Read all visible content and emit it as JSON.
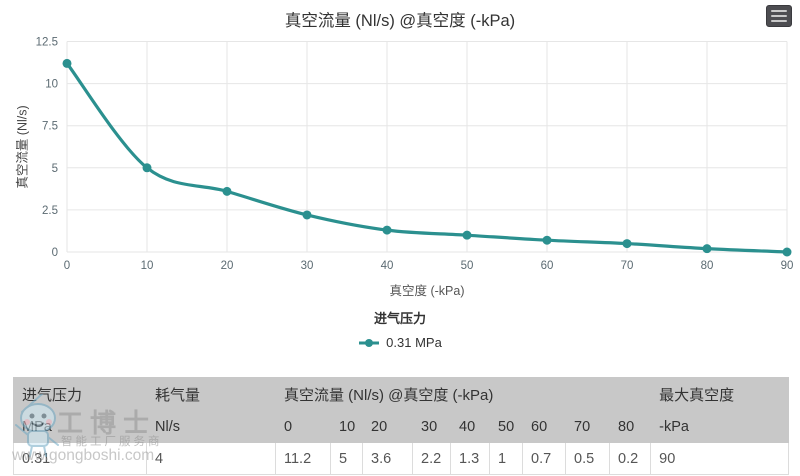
{
  "chart_data": {
    "type": "line",
    "title": "真空流量 (Nl/s) @真空度 (-kPa)",
    "xlabel": "真空度 (-kPa)",
    "ylabel": "真空流量 (Nl/s)",
    "x": [
      0,
      10,
      20,
      30,
      40,
      50,
      60,
      70,
      80,
      90
    ],
    "series": [
      {
        "name": "0.31 MPa",
        "values": [
          11.2,
          5,
          3.6,
          2.2,
          1.3,
          1,
          0.7,
          0.5,
          0.2,
          0
        ]
      }
    ],
    "legend_title": "进气压力",
    "legend_position": "bottom",
    "xlim": [
      0,
      90
    ],
    "ylim": [
      0,
      12.5
    ],
    "xticks": [
      0,
      10,
      20,
      30,
      40,
      50,
      60,
      70,
      80,
      90
    ],
    "yticks": [
      0,
      2.5,
      5,
      7.5,
      10,
      12.5
    ],
    "grid": true,
    "line_color": "#2b908f"
  },
  "colors": {
    "accent": "#2b908f",
    "grid": "#e6e6e6",
    "tick_label": "#5b6a72",
    "table_header_bg": "#c8c8c8"
  },
  "icons": {
    "context_menu": "hamburger-menu-icon",
    "legend_marker": "line-marker-icon",
    "mascot": "robot-mascot-icon"
  },
  "table": {
    "header_groups": [
      {
        "label": "进气压力",
        "sub": [
          "MPa"
        ]
      },
      {
        "label": "耗气量",
        "sub": [
          "Nl/s"
        ]
      },
      {
        "label": "真空流量 (Nl/s) @真空度 (-kPa)",
        "sub": [
          "0",
          "10",
          "20",
          "30",
          "40",
          "50",
          "60",
          "70",
          "80"
        ]
      },
      {
        "label": "最大真空度",
        "sub": [
          "-kPa"
        ]
      }
    ],
    "rows": [
      [
        "0.31",
        "4",
        "11.2",
        "5",
        "3.6",
        "2.2",
        "1.3",
        "1",
        "0.7",
        "0.5",
        "0.2",
        "90"
      ]
    ]
  },
  "watermark": {
    "brand": "工博士",
    "tagline": "智能工厂服务商",
    "url": "www.gongboshi.com"
  }
}
